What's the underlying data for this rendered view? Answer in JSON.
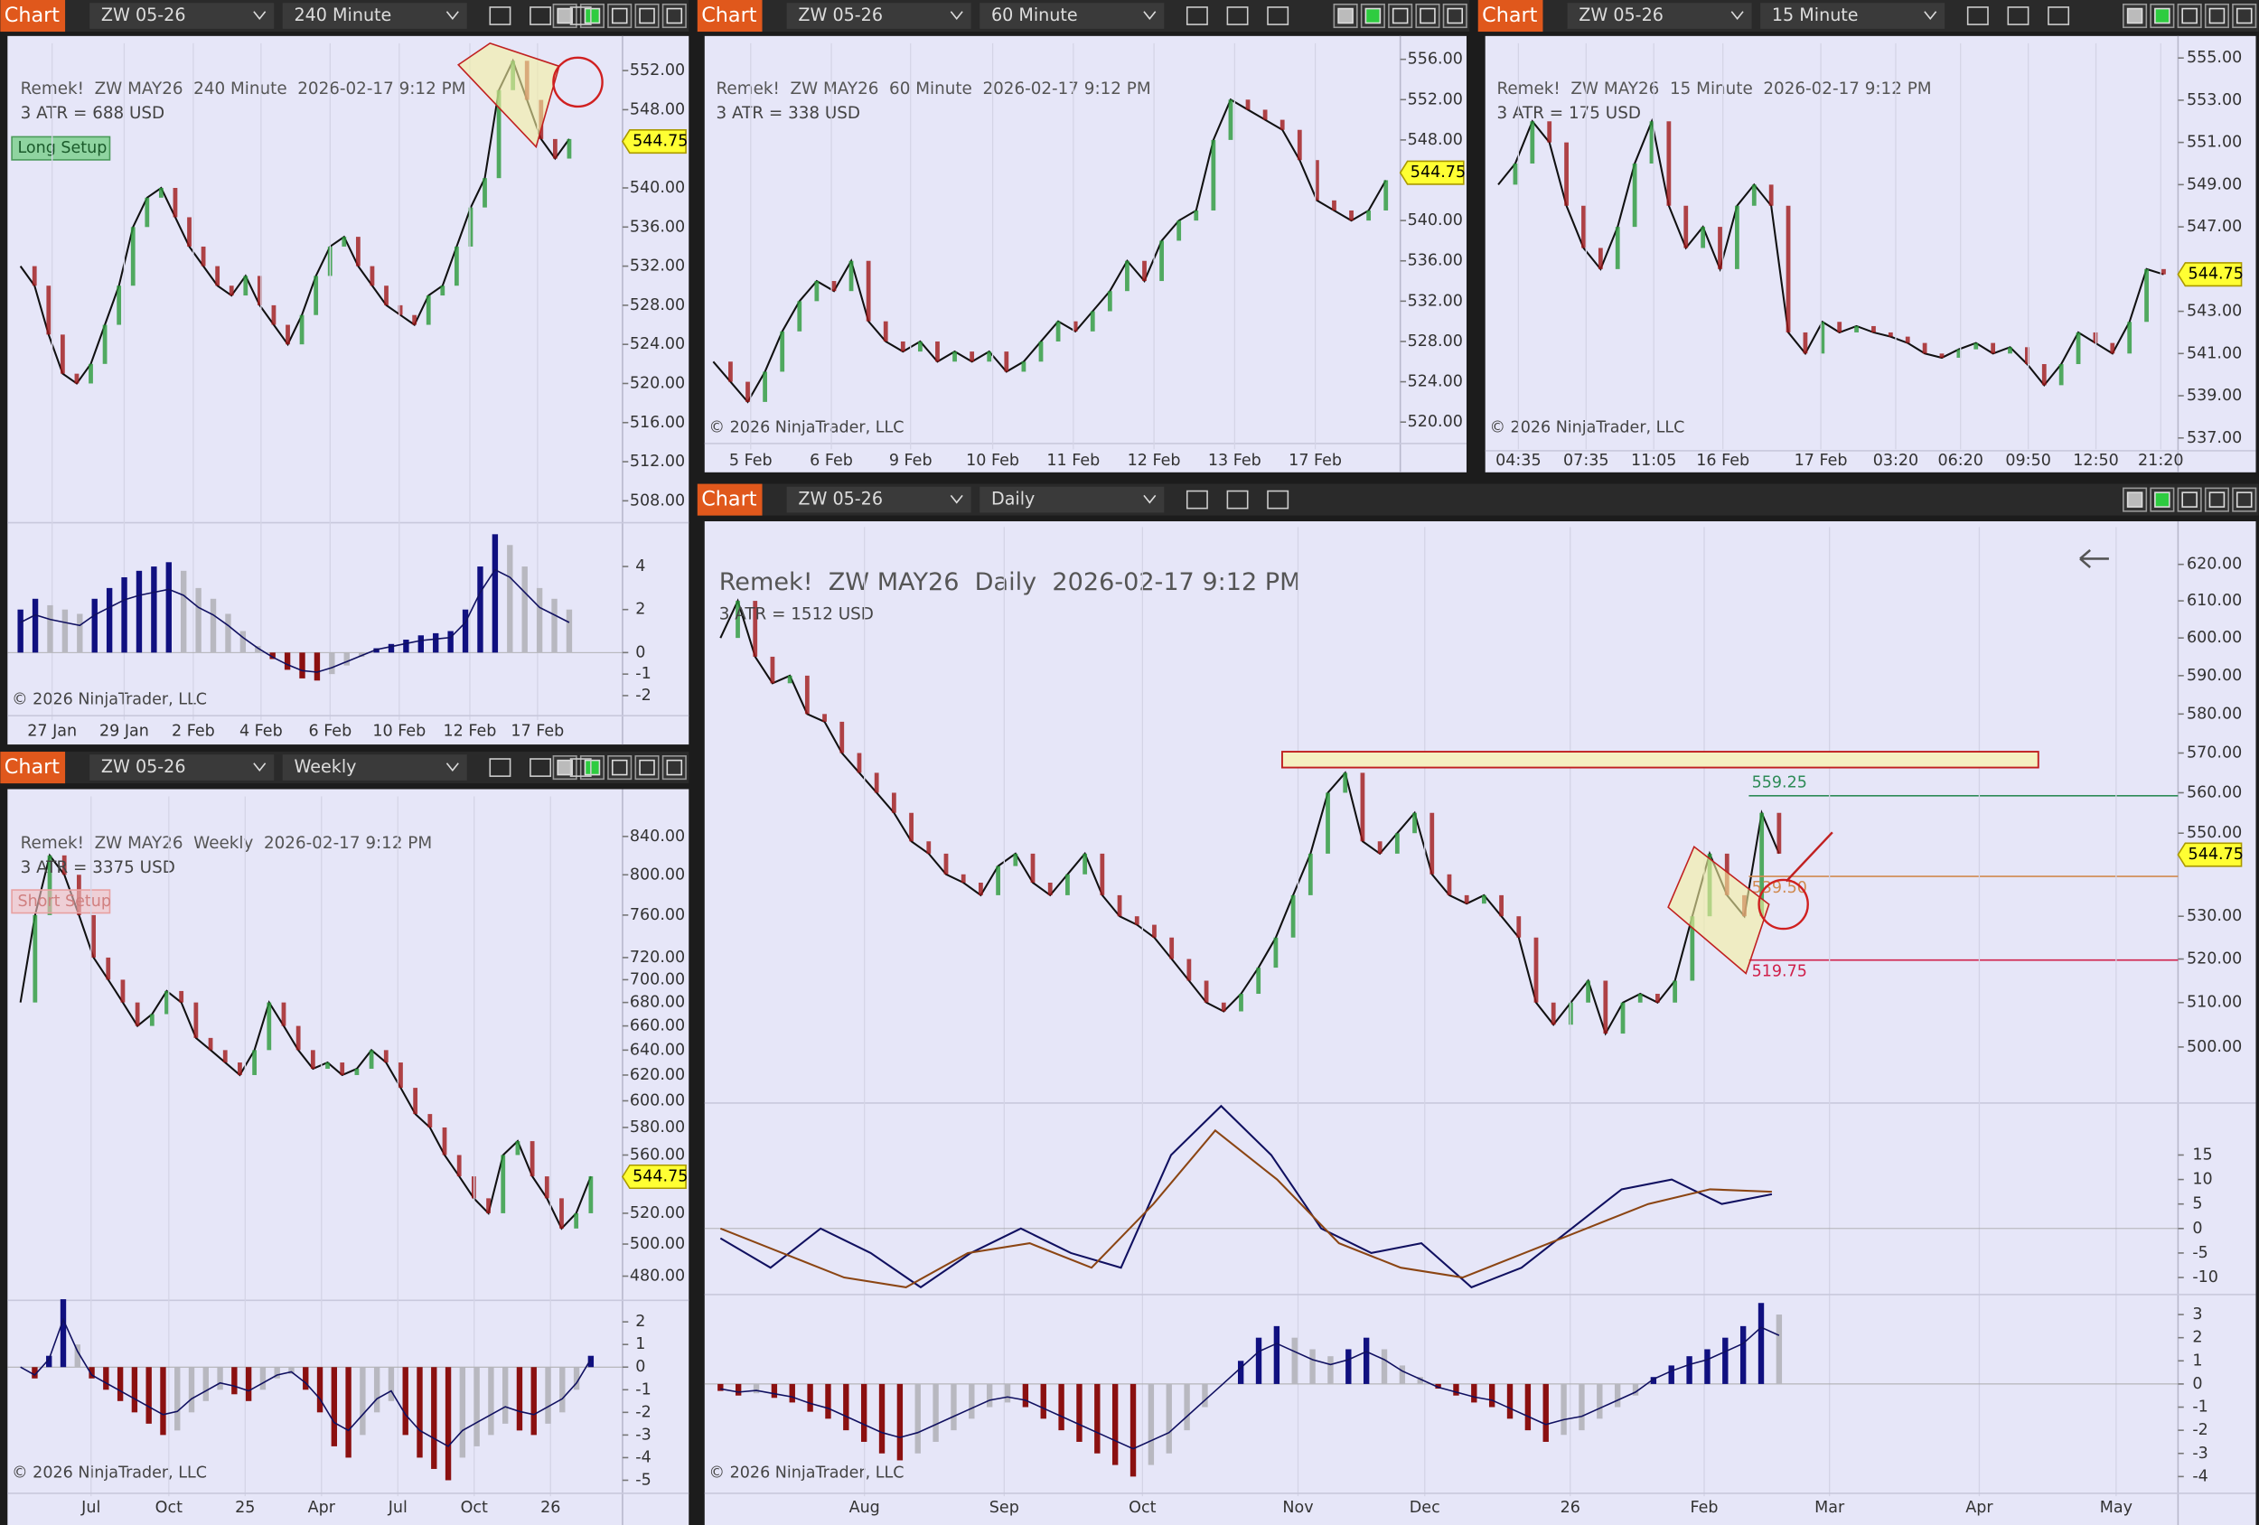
{
  "panels": [
    {
      "header": {
        "button": "Chart",
        "instrument": "ZW 05-26",
        "interval": "240 Minute"
      },
      "title": "Remek!  ZW MAY26  240 Minute  2026-02-17 9:12 PM",
      "atr": "3 ATR = 688 USD",
      "setup": "Long Setup",
      "copyright": "© 2026 NinjaTrader, LLC",
      "price": {
        "ylim": [
          506.2,
          554.8
        ],
        "log": false,
        "yticks": [
          {
            "value": 552,
            "label": "552.00"
          },
          {
            "value": 548,
            "label": "548.00"
          },
          {
            "value": 540,
            "label": "540.00"
          },
          {
            "value": 536,
            "label": "536.00"
          },
          {
            "value": 532,
            "label": "532.00"
          },
          {
            "value": 528,
            "label": "528.00"
          },
          {
            "value": 524,
            "label": "524.00"
          },
          {
            "value": 520,
            "label": "520.00"
          },
          {
            "value": 516,
            "label": "516.00"
          },
          {
            "value": 512,
            "label": "512.00"
          },
          {
            "value": 508,
            "label": "508.00"
          }
        ],
        "values": [
          532,
          530,
          525,
          521,
          520,
          522,
          526,
          530,
          536,
          539,
          540,
          537,
          534,
          532,
          530,
          529,
          531,
          528,
          526,
          524,
          527,
          531,
          534,
          535,
          532,
          530,
          528,
          527,
          526,
          529,
          530,
          534,
          538,
          541,
          550,
          553,
          549,
          545,
          543,
          545
        ],
        "price_label": {
          "value": 544.75,
          "label": "544.75"
        }
      },
      "indicators": [
        {
          "type": "histogram",
          "ylim": [
            -2.8,
            5.7
          ],
          "yticks": [
            4,
            2,
            0,
            -1,
            -2
          ],
          "values": [
            2,
            2.5,
            2.2,
            2,
            1.8,
            2.5,
            3,
            3.5,
            3.8,
            4,
            4.2,
            3.8,
            3,
            2.5,
            1.8,
            1,
            0.3,
            -0.3,
            -0.8,
            -1.2,
            -1.3,
            -1,
            -0.6,
            -0.2,
            0.2,
            0.4,
            0.6,
            0.8,
            0.9,
            1,
            2,
            4,
            5.5,
            5,
            4,
            3,
            2.5,
            2
          ]
        }
      ],
      "xlabels": [
        "27 Jan",
        "29 Jan",
        "2 Feb",
        "4 Feb",
        "6 Feb",
        "10 Feb",
        "12 Feb",
        "17 Feb"
      ]
    },
    {
      "header": {
        "button": "Chart",
        "instrument": "ZW 05-26",
        "interval": "60 Minute"
      },
      "title": "Remek!  ZW MAY26  60 Minute  2026-02-17 9:12 PM",
      "atr": "3 ATR = 338 USD",
      "copyright": "© 2026 NinjaTrader, LLC",
      "price": {
        "ylim": [
          518.3,
          557.6
        ],
        "log": false,
        "yticks": [
          {
            "value": 556,
            "label": "556.00"
          },
          {
            "value": 552,
            "label": "552.00"
          },
          {
            "value": 548,
            "label": "548.00"
          },
          {
            "value": 540,
            "label": "540.00"
          },
          {
            "value": 536,
            "label": "536.00"
          },
          {
            "value": 532,
            "label": "532.00"
          },
          {
            "value": 528,
            "label": "528.00"
          },
          {
            "value": 524,
            "label": "524.00"
          },
          {
            "value": 520,
            "label": "520.00"
          }
        ],
        "values": [
          526,
          524,
          522,
          525,
          529,
          532,
          534,
          533,
          536,
          530,
          528,
          527,
          528,
          526,
          527,
          526,
          527,
          525,
          526,
          528,
          530,
          529,
          531,
          533,
          536,
          534,
          538,
          540,
          541,
          548,
          552,
          551,
          550,
          549,
          546,
          542,
          541,
          540,
          541,
          544
        ],
        "price_label": {
          "value": 544.75,
          "label": "544.75"
        }
      },
      "indicators": [],
      "xlabels": [
        "5 Feb",
        "6 Feb",
        "9 Feb",
        "10 Feb",
        "11 Feb",
        "12 Feb",
        "13 Feb",
        "17 Feb"
      ]
    },
    {
      "header": {
        "button": "Chart",
        "instrument": "ZW 05-26",
        "interval": "15 Minute"
      },
      "title": "Remek!  ZW MAY26  15 Minute  2026-02-17 9:12 PM",
      "atr": "3 ATR = 175 USD",
      "copyright": "© 2026 NinjaTrader, LLC",
      "price": {
        "ylim": [
          536.6,
          555.7
        ],
        "log": false,
        "yticks": [
          {
            "value": 555,
            "label": "555.00"
          },
          {
            "value": 553,
            "label": "553.00"
          },
          {
            "value": 551,
            "label": "551.00"
          },
          {
            "value": 549,
            "label": "549.00"
          },
          {
            "value": 547,
            "label": "547.00"
          },
          {
            "value": 543,
            "label": "543.00"
          },
          {
            "value": 541,
            "label": "541.00"
          },
          {
            "value": 539,
            "label": "539.00"
          },
          {
            "value": 537,
            "label": "537.00"
          }
        ],
        "values": [
          549,
          550,
          552,
          551,
          548,
          546,
          545,
          547,
          550,
          552,
          548,
          546,
          547,
          545,
          548,
          549,
          548,
          542,
          541,
          542.5,
          542,
          542.3,
          542,
          541.8,
          541.5,
          541,
          540.8,
          541.2,
          541.5,
          541,
          541.3,
          540.5,
          539.5,
          540.5,
          542,
          541.5,
          541,
          542.5,
          545,
          544.75
        ],
        "price_label": {
          "value": 544.75,
          "label": "544.75"
        }
      },
      "indicators": [],
      "xlabels": [
        "04:35",
        "07:35",
        "11:05",
        "16 Feb",
        "17 Feb",
        "03:20",
        "06:20",
        "09:50",
        "12:50",
        "21:20"
      ]
    },
    {
      "header": {
        "button": "Chart",
        "instrument": "ZW 05-26",
        "interval": "Weekly"
      },
      "title": "Remek!  ZW MAY26  Weekly  2026-02-17 9:12 PM",
      "atr": "3 ATR = 3375 USD",
      "setup": "Short Setup",
      "copyright": "© 2026 NinjaTrader, LLC",
      "price": {
        "ylim": [
          468,
          884
        ],
        "log": true,
        "yticks": [
          {
            "value": 840,
            "label": "840.00"
          },
          {
            "value": 800,
            "label": "800.00"
          },
          {
            "value": 760,
            "label": "760.00"
          },
          {
            "value": 720,
            "label": "720.00"
          },
          {
            "value": 700,
            "label": "700.00"
          },
          {
            "value": 680,
            "label": "680.00"
          },
          {
            "value": 660,
            "label": "660.00"
          },
          {
            "value": 640,
            "label": "640.00"
          },
          {
            "value": 620,
            "label": "620.00"
          },
          {
            "value": 600,
            "label": "600.00"
          },
          {
            "value": 580,
            "label": "580.00"
          },
          {
            "value": 560,
            "label": "560.00"
          },
          {
            "value": 520,
            "label": "520.00"
          },
          {
            "value": 500,
            "label": "500.00"
          },
          {
            "value": 480,
            "label": "480.00"
          }
        ],
        "values": [
          680,
          760,
          820,
          800,
          760,
          720,
          700,
          680,
          660,
          670,
          690,
          680,
          650,
          640,
          630,
          620,
          640,
          680,
          660,
          640,
          625,
          630,
          620,
          625,
          640,
          630,
          610,
          590,
          580,
          560,
          545,
          530,
          520,
          560,
          570,
          545,
          530,
          510,
          520,
          545
        ],
        "price_label": {
          "value": 544.75,
          "label": "544.75"
        }
      },
      "indicators": [
        {
          "type": "histogram",
          "ylim": [
            -5.45,
            2.95
          ],
          "yticks": [
            2,
            1,
            0,
            -1,
            -2,
            -3,
            -4,
            -5
          ],
          "values": [
            0,
            -0.5,
            0.5,
            3,
            1,
            -0.5,
            -1,
            -1.5,
            -2,
            -2.5,
            -3,
            -2.8,
            -2,
            -1.5,
            -1,
            -1.2,
            -1.5,
            -1,
            -0.5,
            -0.3,
            -1,
            -2,
            -3.5,
            -4,
            -3,
            -2,
            -1.5,
            -3,
            -4,
            -4.5,
            -5,
            -4,
            -3.5,
            -3,
            -2.5,
            -2.8,
            -3,
            -2.5,
            -2,
            -1,
            0.5
          ]
        }
      ],
      "xlabels": [
        "Jul",
        "Oct",
        "25",
        "Apr",
        "Jul",
        "Oct",
        "26"
      ]
    },
    {
      "header": {
        "button": "Chart",
        "instrument": "ZW 05-26",
        "interval": "Daily"
      },
      "title": "Remek!  ZW MAY26  Daily  2026-02-17 9:12 PM",
      "atr": "3 ATR = 1512 USD",
      "copyright": "© 2026 NinjaTrader, LLC",
      "price": {
        "ylim": [
          488.6,
          630.4
        ],
        "log": true,
        "yticks": [
          {
            "value": 620,
            "label": "620.00"
          },
          {
            "value": 610,
            "label": "610.00"
          },
          {
            "value": 600,
            "label": "600.00"
          },
          {
            "value": 590,
            "label": "590.00"
          },
          {
            "value": 580,
            "label": "580.00"
          },
          {
            "value": 570,
            "label": "570.00"
          },
          {
            "value": 560,
            "label": "560.00"
          },
          {
            "value": 550,
            "label": "550.00"
          },
          {
            "value": 530,
            "label": "530.00"
          },
          {
            "value": 520,
            "label": "520.00"
          },
          {
            "value": 510,
            "label": "510.00"
          },
          {
            "value": 500,
            "label": "500.00"
          }
        ],
        "values": [
          600,
          610,
          595,
          588,
          590,
          580,
          578,
          570,
          565,
          560,
          555,
          548,
          545,
          540,
          538,
          535,
          542,
          545,
          538,
          535,
          540,
          545,
          535,
          530,
          528,
          525,
          520,
          515,
          510,
          508,
          512,
          518,
          525,
          535,
          545,
          560,
          565,
          548,
          545,
          550,
          555,
          540,
          535,
          533,
          535,
          530,
          525,
          510,
          505,
          510,
          515,
          503,
          510,
          512,
          510,
          515,
          530,
          545,
          535,
          530,
          555,
          545
        ],
        "price_label": {
          "value": 544.75,
          "label": "544.75"
        },
        "levels": [
          {
            "value": 559.25,
            "label": "559.25",
            "color": "#2e8b57"
          },
          {
            "value": 539.5,
            "label": "539.50",
            "color": "#d08a50"
          },
          {
            "value": 519.75,
            "label": "519.75",
            "color": "#d0204a"
          }
        ]
      },
      "indicators": [
        {
          "type": "lines",
          "ylim": [
            -12.9,
            25.6
          ],
          "yticks": [
            15,
            10,
            5,
            0,
            -5,
            -10
          ],
          "series": [
            {
              "color": "#101060",
              "values": [
                -2,
                -8,
                0,
                -5,
                -12,
                -5,
                0,
                -5,
                -8,
                15,
                25,
                15,
                0,
                -5,
                -3,
                -12,
                -8,
                0,
                8,
                10,
                5,
                7
              ]
            },
            {
              "color": "#8b4513",
              "values": [
                0,
                -5,
                -10,
                -12,
                -5,
                -3,
                -8,
                5,
                20,
                10,
                -3,
                -8,
                -10,
                -5,
                0,
                5,
                8,
                7.5
              ]
            }
          ]
        },
        {
          "type": "histogram",
          "ylim": [
            -4.6,
            3.8
          ],
          "yticks": [
            3,
            2,
            1,
            0,
            -1,
            -2,
            -3,
            -4
          ],
          "values": [
            -0.3,
            -0.5,
            -0.4,
            -0.6,
            -0.8,
            -1.2,
            -1.5,
            -2,
            -2.5,
            -3,
            -3.3,
            -3,
            -2.5,
            -2,
            -1.5,
            -1,
            -0.8,
            -1,
            -1.5,
            -2,
            -2.5,
            -3,
            -3.5,
            -4,
            -3.5,
            -3,
            -2,
            -1,
            0,
            1,
            2,
            2.5,
            2,
            1.5,
            1.2,
            1.5,
            2,
            1.5,
            0.8,
            0.3,
            -0.2,
            -0.5,
            -0.8,
            -1,
            -1.5,
            -2,
            -2.5,
            -2.2,
            -2,
            -1.5,
            -1,
            -0.5,
            0.3,
            0.8,
            1.2,
            1.5,
            2,
            2.5,
            3.5,
            3
          ]
        }
      ],
      "xlabels": [
        "Aug",
        "Sep",
        "Oct",
        "Nov",
        "Dec",
        "26",
        "Feb",
        "Mar",
        "Apr",
        "May"
      ]
    }
  ]
}
